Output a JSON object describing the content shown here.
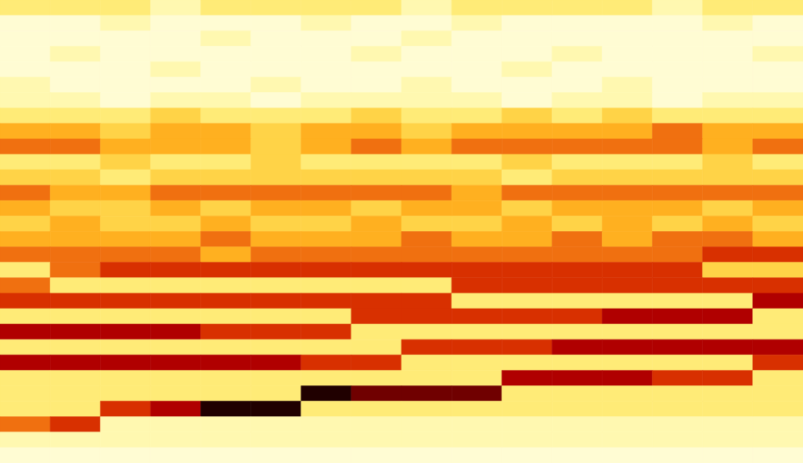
{
  "chart_data": {
    "type": "heatmap",
    "tick_labels": false,
    "xlim": [
      0,
      16
    ],
    "ylim": [
      0,
      30
    ],
    "color_range": [
      0,
      10
    ],
    "cells": [
      [
        3,
        3,
        3,
        2,
        3,
        3,
        3,
        3,
        2,
        3,
        3,
        3,
        3,
        2,
        3,
        3
      ],
      [
        1,
        1,
        2,
        1,
        1,
        1,
        2,
        1,
        1,
        2,
        1,
        1,
        1,
        1,
        2,
        1
      ],
      [
        1,
        1,
        1,
        1,
        2,
        1,
        1,
        1,
        2,
        1,
        1,
        1,
        1,
        1,
        1,
        1
      ],
      [
        1,
        2,
        1,
        1,
        1,
        1,
        1,
        2,
        1,
        1,
        1,
        2,
        1,
        1,
        1,
        2
      ],
      [
        1,
        1,
        1,
        2,
        1,
        1,
        1,
        1,
        1,
        1,
        2,
        1,
        1,
        1,
        1,
        1
      ],
      [
        2,
        1,
        1,
        1,
        1,
        2,
        1,
        1,
        2,
        1,
        1,
        1,
        2,
        1,
        1,
        1
      ],
      [
        2,
        2,
        1,
        2,
        2,
        1,
        2,
        2,
        2,
        2,
        1,
        2,
        2,
        1,
        2,
        2
      ],
      [
        3,
        3,
        3,
        4,
        3,
        3,
        3,
        4,
        3,
        3,
        4,
        3,
        4,
        3,
        3,
        3
      ],
      [
        5,
        5,
        4,
        5,
        5,
        4,
        5,
        5,
        4,
        5,
        5,
        5,
        5,
        6,
        5,
        5
      ],
      [
        6,
        6,
        5,
        5,
        5,
        4,
        5,
        6,
        5,
        6,
        6,
        6,
        6,
        6,
        5,
        6
      ],
      [
        3,
        3,
        4,
        3,
        3,
        4,
        3,
        3,
        3,
        3,
        4,
        3,
        3,
        3,
        4,
        3
      ],
      [
        4,
        4,
        3,
        4,
        4,
        4,
        4,
        4,
        4,
        4,
        3,
        4,
        4,
        4,
        4,
        4
      ],
      [
        6,
        5,
        5,
        6,
        6,
        6,
        6,
        6,
        6,
        5,
        6,
        6,
        6,
        6,
        6,
        6
      ],
      [
        5,
        4,
        4,
        5,
        4,
        5,
        5,
        4,
        5,
        5,
        4,
        5,
        5,
        5,
        4,
        5
      ],
      [
        4,
        5,
        4,
        4,
        5,
        4,
        4,
        5,
        4,
        4,
        5,
        4,
        5,
        4,
        5,
        4
      ],
      [
        5,
        5,
        5,
        5,
        6,
        5,
        5,
        5,
        6,
        5,
        5,
        6,
        5,
        6,
        6,
        5
      ],
      [
        6,
        6,
        6,
        6,
        5,
        6,
        6,
        6,
        6,
        6,
        6,
        6,
        6,
        6,
        7,
        7
      ],
      [
        3,
        6,
        7,
        7,
        7,
        7,
        7,
        7,
        7,
        7,
        7,
        7,
        7,
        7,
        4,
        4
      ],
      [
        6,
        3,
        3,
        3,
        3,
        3,
        3,
        3,
        3,
        7,
        7,
        7,
        7,
        7,
        7,
        7
      ],
      [
        7,
        7,
        7,
        7,
        7,
        7,
        7,
        7,
        7,
        3,
        3,
        3,
        3,
        3,
        3,
        8
      ],
      [
        3,
        3,
        3,
        3,
        3,
        3,
        3,
        7,
        7,
        7,
        7,
        7,
        8,
        8,
        8,
        3
      ],
      [
        8,
        8,
        8,
        8,
        7,
        7,
        7,
        3,
        3,
        3,
        3,
        3,
        3,
        3,
        3,
        3
      ],
      [
        3,
        3,
        3,
        3,
        3,
        3,
        3,
        3,
        7,
        7,
        7,
        8,
        8,
        8,
        8,
        8
      ],
      [
        8,
        8,
        8,
        8,
        8,
        8,
        7,
        7,
        3,
        3,
        3,
        3,
        3,
        3,
        3,
        7
      ],
      [
        3,
        3,
        3,
        3,
        3,
        3,
        3,
        3,
        3,
        3,
        8,
        8,
        8,
        7,
        7,
        3
      ],
      [
        3,
        3,
        3,
        3,
        3,
        3,
        10,
        9,
        9,
        9,
        3,
        3,
        3,
        3,
        3,
        3
      ],
      [
        3,
        3,
        7,
        8,
        10,
        10,
        3,
        3,
        3,
        3,
        3,
        3,
        3,
        3,
        3,
        3
      ],
      [
        6,
        7,
        2,
        2,
        2,
        2,
        2,
        2,
        2,
        2,
        2,
        2,
        2,
        2,
        2,
        2
      ],
      [
        2,
        2,
        2,
        2,
        2,
        2,
        2,
        2,
        2,
        2,
        2,
        2,
        2,
        2,
        2,
        2
      ],
      [
        1,
        1,
        1,
        1,
        1,
        1,
        1,
        1,
        1,
        1,
        1,
        1,
        1,
        1,
        1,
        1
      ]
    ]
  }
}
